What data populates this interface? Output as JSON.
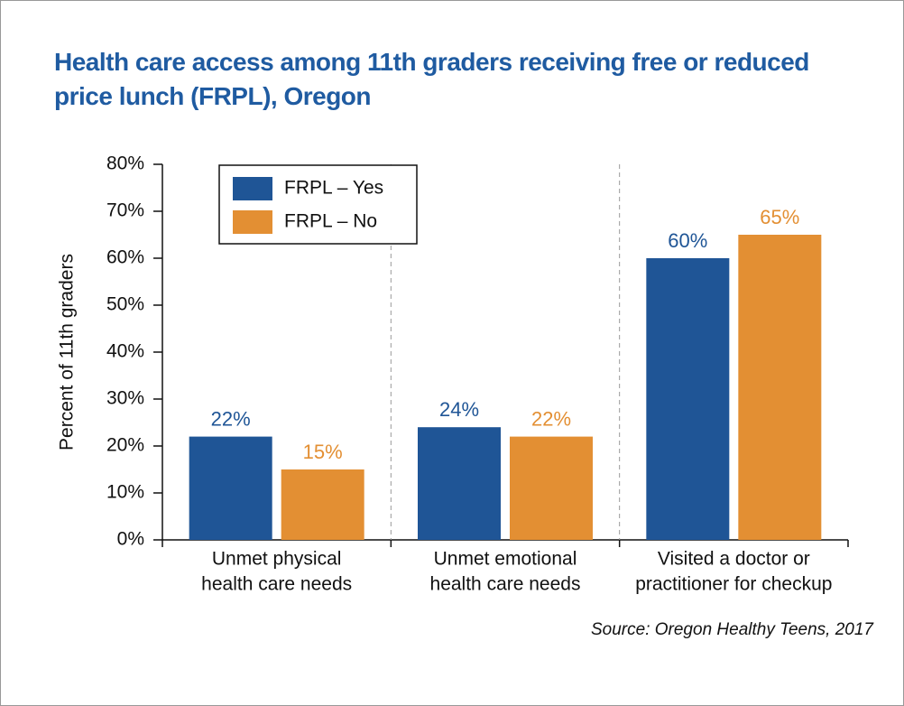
{
  "chart_data": {
    "type": "bar",
    "title": "Health care access among 11th graders receiving free or reduced price lunch (FRPL), Oregon",
    "y_label": "Percent of 11th graders",
    "categories": [
      [
        "Unmet physical",
        "health care needs"
      ],
      [
        "Unmet emotional",
        "health care needs"
      ],
      [
        "Visited a doctor or",
        "practitioner for checkup"
      ]
    ],
    "series": [
      {
        "name": "FRPL – Yes",
        "color": "#1f5596",
        "values": [
          22,
          24,
          60
        ],
        "value_labels": [
          "22%",
          "24%",
          "60%"
        ]
      },
      {
        "name": "FRPL – No",
        "color": "#e38f33",
        "values": [
          15,
          22,
          65
        ],
        "value_labels": [
          "15%",
          "22%",
          "65%"
        ]
      }
    ],
    "ylim": [
      0,
      80
    ],
    "yticks": [
      {
        "value": 0,
        "label": "0%"
      },
      {
        "value": 10,
        "label": "10%"
      },
      {
        "value": 20,
        "label": "20%"
      },
      {
        "value": 30,
        "label": "30%"
      },
      {
        "value": 40,
        "label": "40%"
      },
      {
        "value": 50,
        "label": "50%"
      },
      {
        "value": 60,
        "label": "60%"
      },
      {
        "value": 70,
        "label": "70%"
      },
      {
        "value": 80,
        "label": "80%"
      }
    ],
    "legend": "upper left",
    "source": "Source: Oregon Healthy Teens, 2017"
  }
}
